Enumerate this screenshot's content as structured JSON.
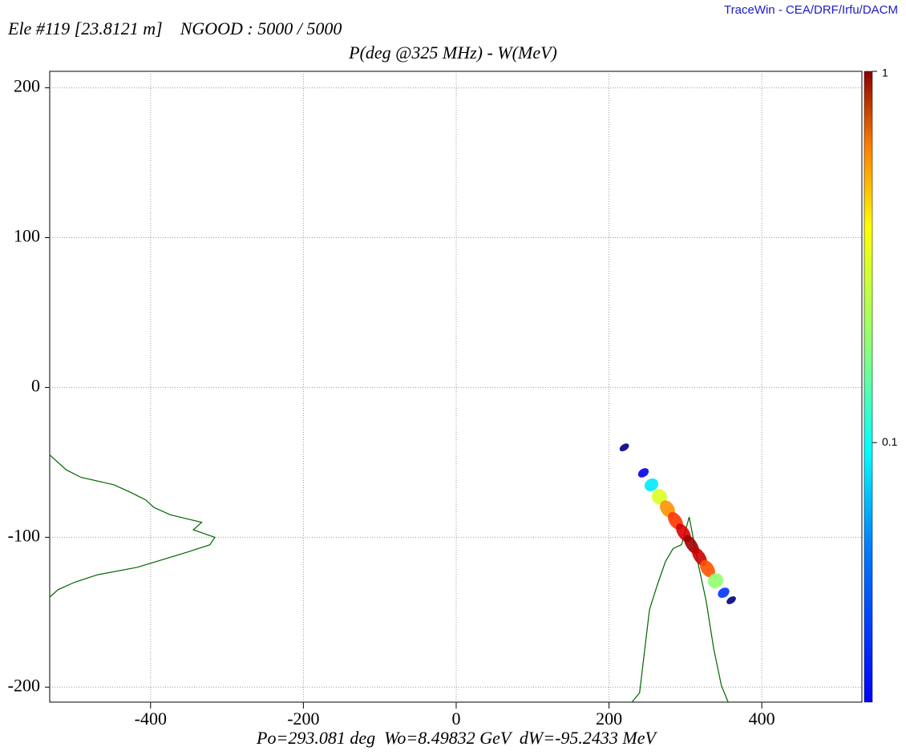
{
  "chart_data": {
    "type": "scatter",
    "app_label": "TraceWin - CEA/DRF/Irfu/DACM",
    "header": "Ele #119 [23.8121 m]    NGOOD : 5000 / 5000",
    "title": "P(deg @325 MHz) - W(MeV)",
    "footer": "Po=293.081 deg  Wo=8.49832 GeV  dW=-95.2433 MeV",
    "xlim": [
      -532,
      531
    ],
    "ylim": [
      -210,
      211
    ],
    "xticks": [
      -400,
      -200,
      0,
      200,
      400
    ],
    "yticks": [
      -200,
      -100,
      0,
      100,
      200
    ],
    "grid": true,
    "color_scale": "log",
    "clim": [
      0.02,
      1
    ],
    "cticks": [
      1,
      0.1
    ],
    "x": [
      220,
      245,
      255.5,
      266,
      276.5,
      287,
      297.5,
      308,
      318.5,
      329,
      339.5,
      350,
      360
    ],
    "y": [
      -40,
      -57,
      -65,
      -73,
      -81,
      -89,
      -97,
      -105,
      -113,
      -121,
      -129,
      -137,
      -142
    ],
    "values": [
      0.02,
      0.03,
      0.08,
      0.2,
      0.35,
      0.5,
      0.7,
      0.9,
      0.75,
      0.45,
      0.15,
      0.04,
      0.02
    ],
    "profile_color": "#006400",
    "w_profile": {
      "y": [
        -45,
        -55,
        -60,
        -65,
        -70,
        -75,
        -80,
        -85,
        -90,
        -95,
        -100,
        -105,
        -110,
        -115,
        -120,
        -125,
        -130,
        -135,
        -140
      ],
      "values": [
        0,
        0.1,
        0.19,
        0.39,
        0.49,
        0.58,
        0.63,
        0.73,
        0.92,
        0.87,
        1,
        0.97,
        0.83,
        0.68,
        0.53,
        0.29,
        0.15,
        0.05,
        0
      ]
    },
    "p_profile": {
      "x": [
        230,
        240,
        253,
        263,
        274,
        284,
        295,
        305,
        316,
        327,
        337,
        347,
        356
      ],
      "values": [
        0,
        0.05,
        0.5,
        0.63,
        0.76,
        0.83,
        0.85,
        1,
        0.76,
        0.55,
        0.29,
        0.09,
        0
      ]
    }
  }
}
